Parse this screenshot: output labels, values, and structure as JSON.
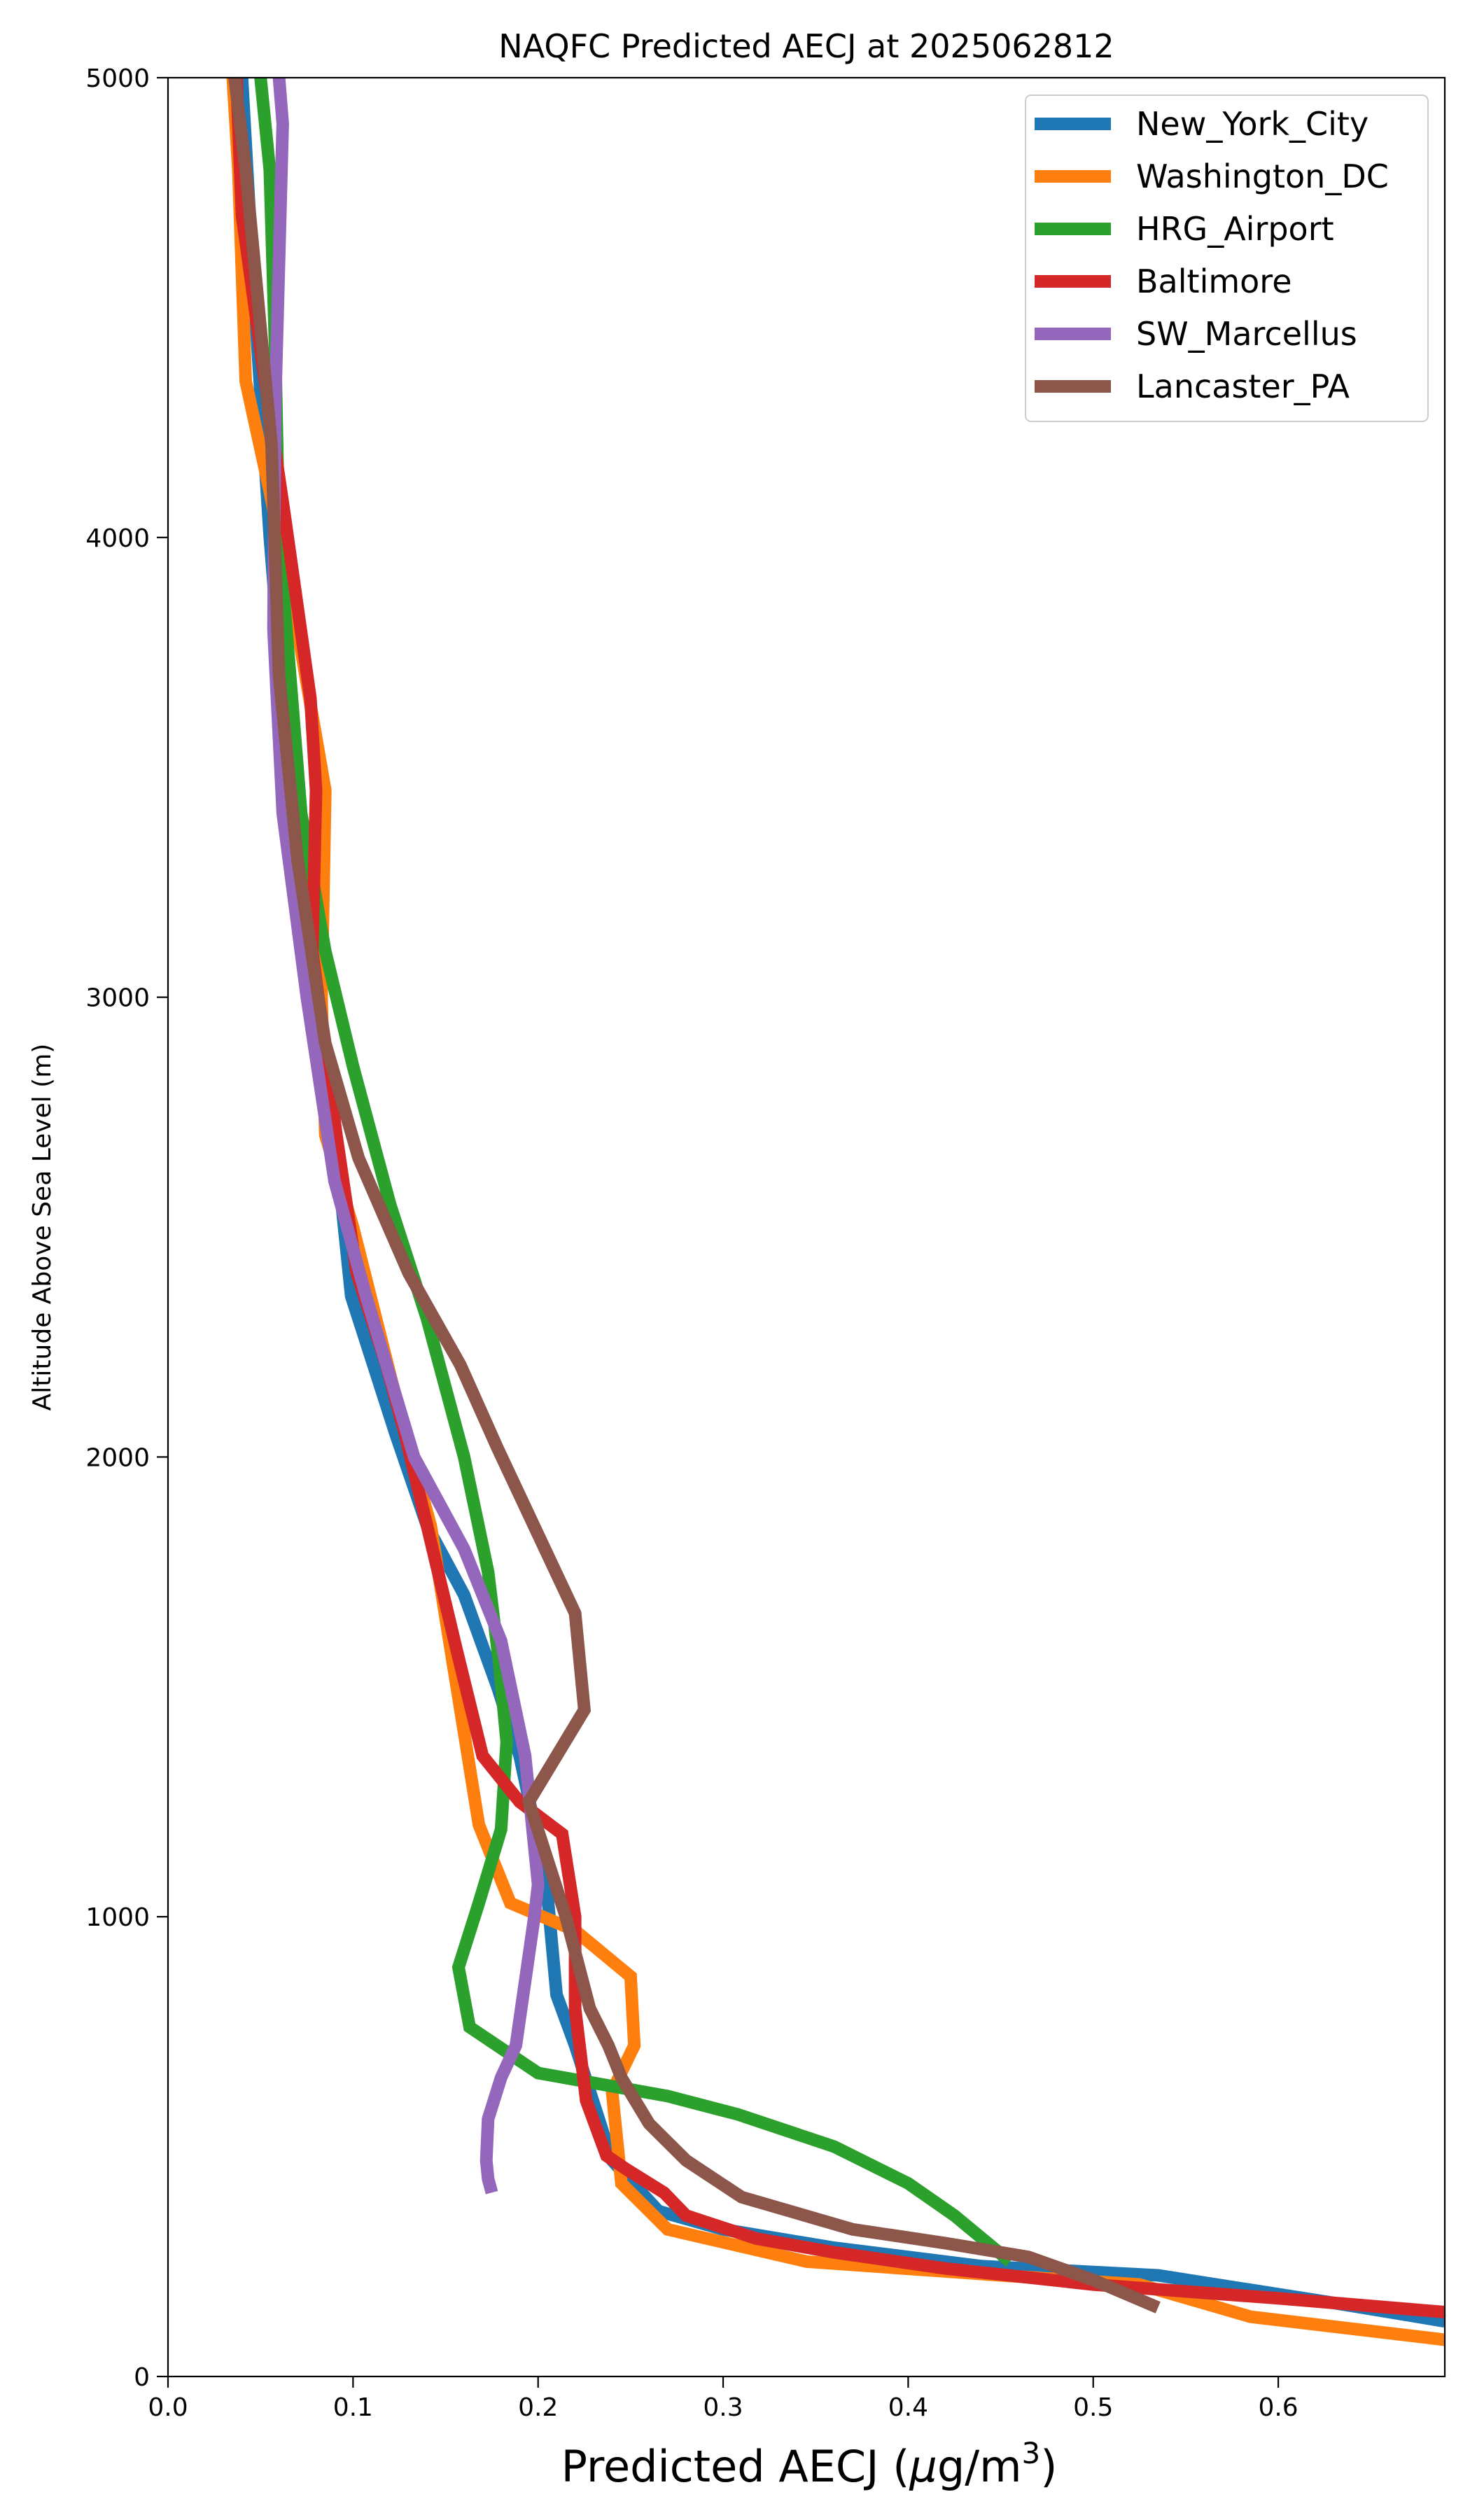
{
  "chart_data": {
    "type": "line",
    "title": "NAQFC Predicted AECJ at 2025062812",
    "xlabel": "Predicted AECJ (μg/m³)",
    "xlabel_prefix": "Predicted AECJ (",
    "xlabel_unit_mu": "μ",
    "xlabel_unit_base": "g/m",
    "xlabel_unit_exp": "3",
    "xlabel_suffix": ")",
    "ylabel": "Altitude Above Sea Level (m)",
    "xlim": [
      0,
      0.69
    ],
    "ylim": [
      0,
      5000
    ],
    "xticks": [
      0.0,
      0.1,
      0.2,
      0.3,
      0.4,
      0.5,
      0.6
    ],
    "xtick_labels": [
      "0.0",
      "0.1",
      "0.2",
      "0.3",
      "0.4",
      "0.5",
      "0.6"
    ],
    "yticks": [
      0,
      1000,
      2000,
      3000,
      4000,
      5000
    ],
    "ytick_labels": [
      "0",
      "1000",
      "2000",
      "3000",
      "4000",
      "5000"
    ],
    "grid": false,
    "legend_position": "top-right",
    "series": [
      {
        "name": "New_York_City",
        "color": "#1f77b4",
        "points": [
          [
            0.69,
            120
          ],
          [
            0.63,
            160
          ],
          [
            0.535,
            220
          ],
          [
            0.44,
            240
          ],
          [
            0.36,
            280
          ],
          [
            0.3,
            320
          ],
          [
            0.265,
            360
          ],
          [
            0.24,
            470
          ],
          [
            0.22,
            720
          ],
          [
            0.21,
            830
          ],
          [
            0.205,
            1050
          ],
          [
            0.198,
            1200
          ],
          [
            0.19,
            1350
          ],
          [
            0.178,
            1500
          ],
          [
            0.16,
            1700
          ],
          [
            0.14,
            1850
          ],
          [
            0.123,
            2050
          ],
          [
            0.099,
            2350
          ],
          [
            0.09,
            2700
          ],
          [
            0.075,
            3050
          ],
          [
            0.065,
            3500
          ],
          [
            0.055,
            4000
          ],
          [
            0.047,
            4500
          ],
          [
            0.04,
            5000
          ]
        ]
      },
      {
        "name": "Washington_DC",
        "color": "#ff7f0e",
        "points": [
          [
            0.69,
            80
          ],
          [
            0.585,
            130
          ],
          [
            0.525,
            200
          ],
          [
            0.45,
            220
          ],
          [
            0.345,
            250
          ],
          [
            0.27,
            320
          ],
          [
            0.245,
            420
          ],
          [
            0.24,
            620
          ],
          [
            0.252,
            720
          ],
          [
            0.25,
            870
          ],
          [
            0.22,
            970
          ],
          [
            0.185,
            1030
          ],
          [
            0.168,
            1200
          ],
          [
            0.16,
            1400
          ],
          [
            0.152,
            1600
          ],
          [
            0.142,
            1850
          ],
          [
            0.125,
            2100
          ],
          [
            0.1,
            2500
          ],
          [
            0.085,
            2700
          ],
          [
            0.083,
            3000
          ],
          [
            0.085,
            3450
          ],
          [
            0.07,
            3800
          ],
          [
            0.055,
            4100
          ],
          [
            0.042,
            4340
          ],
          [
            0.038,
            4800
          ],
          [
            0.035,
            5000
          ]
        ]
      },
      {
        "name": "HRG_Airport",
        "color": "#2ca02c",
        "points": [
          [
            0.455,
            250
          ],
          [
            0.425,
            350
          ],
          [
            0.4,
            420
          ],
          [
            0.36,
            500
          ],
          [
            0.308,
            570
          ],
          [
            0.27,
            610
          ],
          [
            0.2,
            660
          ],
          [
            0.163,
            760
          ],
          [
            0.157,
            890
          ],
          [
            0.168,
            1030
          ],
          [
            0.18,
            1190
          ],
          [
            0.183,
            1380
          ],
          [
            0.179,
            1550
          ],
          [
            0.173,
            1750
          ],
          [
            0.16,
            2000
          ],
          [
            0.14,
            2300
          ],
          [
            0.12,
            2550
          ],
          [
            0.1,
            2850
          ],
          [
            0.085,
            3100
          ],
          [
            0.072,
            3400
          ],
          [
            0.065,
            3750
          ],
          [
            0.06,
            4000
          ],
          [
            0.058,
            4400
          ],
          [
            0.055,
            4800
          ],
          [
            0.05,
            5000
          ]
        ]
      },
      {
        "name": "Baltimore",
        "color": "#d62728",
        "points": [
          [
            0.69,
            140
          ],
          [
            0.6,
            170
          ],
          [
            0.5,
            200
          ],
          [
            0.42,
            235
          ],
          [
            0.36,
            270
          ],
          [
            0.318,
            300
          ],
          [
            0.28,
            350
          ],
          [
            0.268,
            400
          ],
          [
            0.248,
            450
          ],
          [
            0.237,
            480
          ],
          [
            0.226,
            600
          ],
          [
            0.22,
            800
          ],
          [
            0.22,
            1000
          ],
          [
            0.213,
            1180
          ],
          [
            0.19,
            1250
          ],
          [
            0.17,
            1350
          ],
          [
            0.156,
            1580
          ],
          [
            0.14,
            1850
          ],
          [
            0.128,
            2050
          ],
          [
            0.118,
            2200
          ],
          [
            0.102,
            2400
          ],
          [
            0.091,
            2700
          ],
          [
            0.078,
            3100
          ],
          [
            0.08,
            3450
          ],
          [
            0.077,
            3650
          ],
          [
            0.07,
            3850
          ],
          [
            0.063,
            4050
          ],
          [
            0.052,
            4350
          ],
          [
            0.04,
            4700
          ],
          [
            0.037,
            5000
          ]
        ]
      },
      {
        "name": "SW_Marcellus",
        "color": "#9467bd",
        "points": [
          [
            0.175,
            400
          ],
          [
            0.173,
            430
          ],
          [
            0.172,
            470
          ],
          [
            0.173,
            560
          ],
          [
            0.18,
            650
          ],
          [
            0.188,
            720
          ],
          [
            0.198,
            1000
          ],
          [
            0.2,
            1070
          ],
          [
            0.193,
            1350
          ],
          [
            0.18,
            1600
          ],
          [
            0.16,
            1800
          ],
          [
            0.133,
            2000
          ],
          [
            0.107,
            2350
          ],
          [
            0.09,
            2600
          ],
          [
            0.075,
            3000
          ],
          [
            0.062,
            3400
          ],
          [
            0.057,
            3800
          ],
          [
            0.058,
            4300
          ],
          [
            0.06,
            4600
          ],
          [
            0.062,
            4900
          ],
          [
            0.06,
            5000
          ]
        ]
      },
      {
        "name": "Lancaster_PA",
        "color": "#8c564b",
        "points": [
          [
            0.535,
            150
          ],
          [
            0.5,
            210
          ],
          [
            0.465,
            260
          ],
          [
            0.42,
            290
          ],
          [
            0.37,
            320
          ],
          [
            0.31,
            390
          ],
          [
            0.28,
            470
          ],
          [
            0.26,
            550
          ],
          [
            0.245,
            650
          ],
          [
            0.238,
            720
          ],
          [
            0.228,
            800
          ],
          [
            0.215,
            1000
          ],
          [
            0.195,
            1250
          ],
          [
            0.225,
            1450
          ],
          [
            0.22,
            1660
          ],
          [
            0.192,
            1900
          ],
          [
            0.178,
            2020
          ],
          [
            0.158,
            2200
          ],
          [
            0.13,
            2400
          ],
          [
            0.103,
            2650
          ],
          [
            0.085,
            2900
          ],
          [
            0.07,
            3300
          ],
          [
            0.06,
            3700
          ],
          [
            0.056,
            4200
          ],
          [
            0.042,
            4800
          ],
          [
            0.036,
            5000
          ]
        ]
      }
    ]
  }
}
